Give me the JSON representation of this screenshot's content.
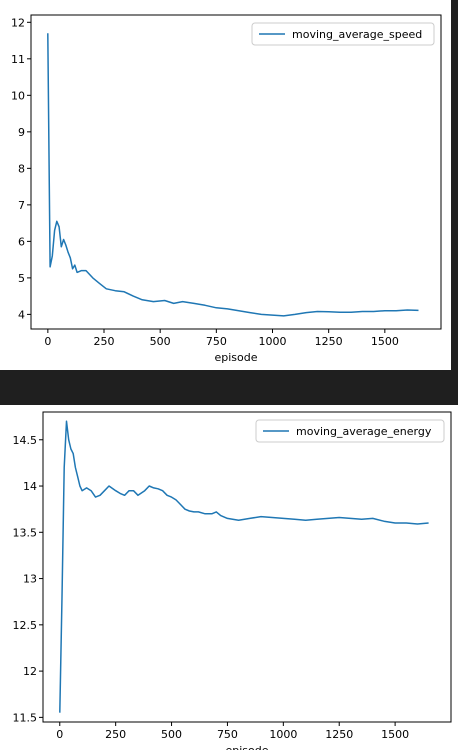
{
  "colors": {
    "background": "#1f1f1f",
    "line": "#1f77b4"
  },
  "chart_data": [
    {
      "type": "line",
      "xlabel": "episode",
      "ylabel": "",
      "xlim": [
        -75,
        1750
      ],
      "ylim": [
        3.6,
        12.2
      ],
      "xticks": [
        0,
        250,
        500,
        750,
        1000,
        1250,
        1500
      ],
      "yticks": [
        4,
        5,
        6,
        7,
        8,
        9,
        10,
        11,
        12
      ],
      "legend_position": "upper right",
      "series": [
        {
          "name": "moving_average_speed",
          "x": [
            0,
            10,
            20,
            30,
            40,
            50,
            60,
            70,
            80,
            90,
            100,
            110,
            120,
            130,
            150,
            170,
            200,
            230,
            260,
            300,
            340,
            380,
            420,
            470,
            520,
            560,
            600,
            650,
            700,
            750,
            800,
            850,
            900,
            950,
            1000,
            1050,
            1100,
            1150,
            1200,
            1250,
            1300,
            1350,
            1400,
            1450,
            1500,
            1550,
            1600,
            1650
          ],
          "values": [
            11.7,
            5.3,
            5.6,
            6.3,
            6.55,
            6.4,
            5.85,
            6.05,
            5.9,
            5.7,
            5.55,
            5.25,
            5.35,
            5.15,
            5.2,
            5.2,
            5.0,
            4.85,
            4.7,
            4.65,
            4.62,
            4.5,
            4.4,
            4.35,
            4.38,
            4.3,
            4.35,
            4.3,
            4.25,
            4.18,
            4.15,
            4.1,
            4.05,
            4.0,
            3.98,
            3.96,
            4.0,
            4.05,
            4.08,
            4.07,
            4.06,
            4.06,
            4.08,
            4.08,
            4.1,
            4.1,
            4.12,
            4.11
          ]
        }
      ]
    },
    {
      "type": "line",
      "xlabel": "episode",
      "ylabel": "",
      "xlim": [
        -75,
        1750
      ],
      "ylim": [
        11.45,
        14.8
      ],
      "xticks": [
        0,
        250,
        500,
        750,
        1000,
        1250,
        1500
      ],
      "yticks": [
        11.5,
        12.0,
        12.5,
        13.0,
        13.5,
        14.0,
        14.5
      ],
      "legend_position": "upper right",
      "series": [
        {
          "name": "moving_average_energy",
          "x": [
            0,
            10,
            20,
            30,
            40,
            50,
            60,
            70,
            80,
            90,
            100,
            120,
            140,
            160,
            180,
            200,
            220,
            250,
            270,
            290,
            310,
            330,
            350,
            380,
            400,
            420,
            440,
            460,
            480,
            500,
            520,
            540,
            560,
            580,
            600,
            620,
            650,
            680,
            700,
            720,
            750,
            800,
            850,
            900,
            950,
            1000,
            1050,
            1100,
            1150,
            1200,
            1250,
            1300,
            1350,
            1400,
            1450,
            1500,
            1550,
            1600,
            1650
          ],
          "values": [
            11.55,
            12.8,
            14.2,
            14.7,
            14.5,
            14.4,
            14.35,
            14.2,
            14.1,
            14.0,
            13.95,
            13.98,
            13.95,
            13.88,
            13.9,
            13.95,
            14.0,
            13.95,
            13.92,
            13.9,
            13.95,
            13.95,
            13.9,
            13.95,
            14.0,
            13.98,
            13.97,
            13.95,
            13.9,
            13.88,
            13.85,
            13.8,
            13.75,
            13.73,
            13.72,
            13.72,
            13.7,
            13.7,
            13.72,
            13.68,
            13.65,
            13.63,
            13.65,
            13.67,
            13.66,
            13.65,
            13.64,
            13.63,
            13.64,
            13.65,
            13.66,
            13.65,
            13.64,
            13.65,
            13.62,
            13.6,
            13.6,
            13.59,
            13.6
          ]
        }
      ]
    }
  ]
}
